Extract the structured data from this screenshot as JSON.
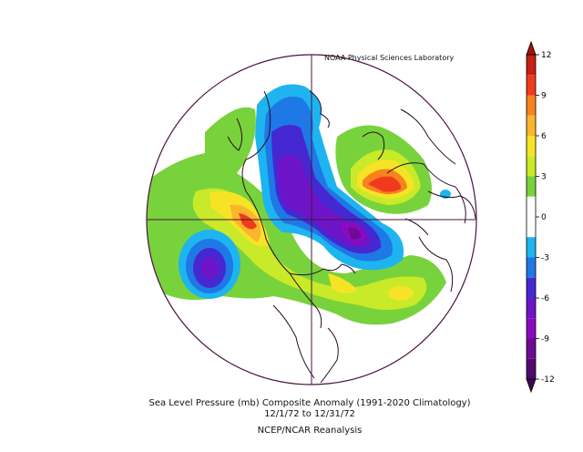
{
  "credit": "NOAA Physical Sciences Laboratory",
  "caption": {
    "line1": "Sea Level Pressure (mb) Composite Anomaly (1991-2020 Climatology)",
    "line2": "12/1/72  to 12/31/72",
    "line3": "NCEP/NCAR Reanalysis"
  },
  "colorbar": {
    "tick_labels": [
      "12",
      "9",
      "6",
      "3",
      "0",
      "-3",
      "-6",
      "-9",
      "-12"
    ],
    "bands": [
      {
        "from": 10.5,
        "to": 12,
        "color": "#c81e14"
      },
      {
        "from": 9,
        "to": 10.5,
        "color": "#ef3a1e"
      },
      {
        "from": 7.5,
        "to": 9,
        "color": "#f7821e"
      },
      {
        "from": 6,
        "to": 7.5,
        "color": "#fbb42d"
      },
      {
        "from": 4.5,
        "to": 6,
        "color": "#f7e326"
      },
      {
        "from": 3,
        "to": 4.5,
        "color": "#c8ea28"
      },
      {
        "from": 1.5,
        "to": 3,
        "color": "#78d23c"
      },
      {
        "from": -1.5,
        "to": 1.5,
        "color": "#ffffff"
      },
      {
        "from": -3,
        "to": -1.5,
        "color": "#1eb4f0"
      },
      {
        "from": -4.5,
        "to": -3,
        "color": "#1e78e6"
      },
      {
        "from": -6,
        "to": -4.5,
        "color": "#4628d2"
      },
      {
        "from": -7.5,
        "to": -6,
        "color": "#6e14c8"
      },
      {
        "from": -9,
        "to": -7.5,
        "color": "#8c0abe"
      },
      {
        "from": -10.5,
        "to": -9,
        "color": "#6e0a96"
      },
      {
        "from": -12,
        "to": -10.5,
        "color": "#500a6e"
      }
    ]
  },
  "colors": {
    "outline": "#4a1440",
    "coast": "#2a0a24"
  }
}
